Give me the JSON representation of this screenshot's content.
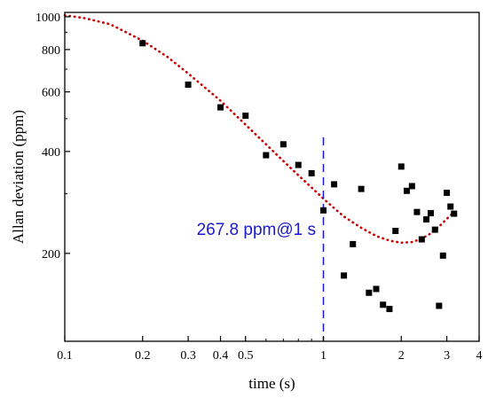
{
  "chart_data": {
    "type": "scatter",
    "title": "",
    "xlabel": "time (s)",
    "ylabel": "Allan deviation (ppm)",
    "x_scale": "log",
    "y_scale": "log",
    "xlim": [
      0.1,
      4
    ],
    "ylim": [
      110,
      1030
    ],
    "x_ticks": [
      {
        "value": 0.1,
        "label": "0.1"
      },
      {
        "value": 0.2,
        "label": "0.2"
      },
      {
        "value": 0.3,
        "label": "0.3"
      },
      {
        "value": 0.4,
        "label": "0.4"
      },
      {
        "value": 0.5,
        "label": "0.5"
      },
      {
        "value": 1,
        "label": "1"
      },
      {
        "value": 2,
        "label": "2"
      },
      {
        "value": 3,
        "label": "3"
      },
      {
        "value": 4,
        "label": "4"
      }
    ],
    "y_ticks": [
      {
        "value": 200,
        "label": "200"
      },
      {
        "value": 400,
        "label": "400"
      },
      {
        "value": 600,
        "label": "600"
      },
      {
        "value": 800,
        "label": "800"
      },
      {
        "value": 1000,
        "label": "1000"
      }
    ],
    "grid": false,
    "legend": "none",
    "series": [
      {
        "type": "scatter",
        "marker": "square",
        "color": "#000000",
        "points": [
          [
            0.2,
            835
          ],
          [
            0.3,
            630
          ],
          [
            0.4,
            540
          ],
          [
            0.5,
            510
          ],
          [
            0.6,
            390
          ],
          [
            0.7,
            420
          ],
          [
            0.8,
            365
          ],
          [
            0.9,
            345
          ],
          [
            1.0,
            268
          ],
          [
            1.1,
            320
          ],
          [
            1.2,
            172
          ],
          [
            1.3,
            213
          ],
          [
            1.4,
            310
          ],
          [
            1.5,
            153
          ],
          [
            1.6,
            157
          ],
          [
            1.7,
            141
          ],
          [
            1.8,
            137
          ],
          [
            1.9,
            233
          ],
          [
            2.0,
            361
          ],
          [
            2.1,
            306
          ],
          [
            2.2,
            316
          ],
          [
            2.3,
            265
          ],
          [
            2.4,
            220
          ],
          [
            2.5,
            252
          ],
          [
            2.6,
            263
          ],
          [
            2.7,
            235
          ],
          [
            2.8,
            140
          ],
          [
            2.9,
            197
          ],
          [
            3.0,
            302
          ],
          [
            3.1,
            275
          ],
          [
            3.2,
            262
          ]
        ]
      },
      {
        "type": "line",
        "style": "dotted",
        "color": "#cc0000",
        "points": [
          [
            0.1,
            1010
          ],
          [
            0.12,
            990
          ],
          [
            0.15,
            950
          ],
          [
            0.2,
            850
          ],
          [
            0.25,
            760
          ],
          [
            0.3,
            680
          ],
          [
            0.4,
            565
          ],
          [
            0.5,
            480
          ],
          [
            0.6,
            420
          ],
          [
            0.7,
            375
          ],
          [
            0.8,
            340
          ],
          [
            0.9,
            313
          ],
          [
            1.0,
            290
          ],
          [
            1.1,
            272
          ],
          [
            1.2,
            257
          ],
          [
            1.4,
            238
          ],
          [
            1.6,
            225
          ],
          [
            1.8,
            218
          ],
          [
            2.0,
            215
          ],
          [
            2.2,
            216
          ],
          [
            2.4,
            221
          ],
          [
            2.6,
            229
          ],
          [
            2.8,
            240
          ],
          [
            3.0,
            253
          ],
          [
            3.2,
            265
          ]
        ]
      }
    ],
    "reference_line": {
      "orientation": "vertical",
      "x": 1,
      "color": "#1a1acc",
      "style": "dashed"
    },
    "annotations": [
      {
        "text": "267.8 ppm@1 s",
        "color": "#1a1acc"
      }
    ]
  }
}
